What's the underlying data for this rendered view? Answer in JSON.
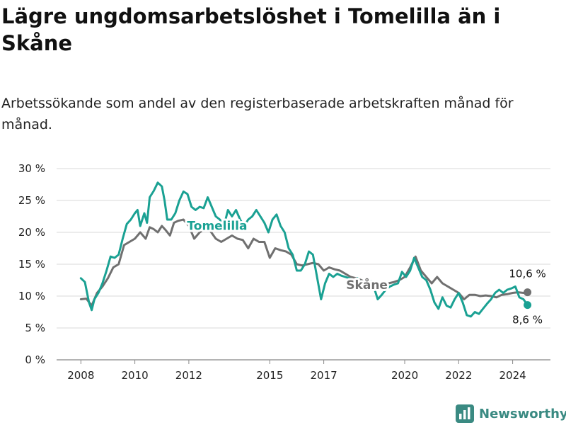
{
  "title": "Lägre ungdomsarbetslöshet i Tomelilla än i Skåne",
  "subtitle": "Arbetssökande som andel av den registerbaserade arbetskraften månad för månad.",
  "brand": {
    "name": "Newsworthy",
    "color": "#3a8a82"
  },
  "colors": {
    "tomelilla": "#1aa193",
    "skane": "#707070",
    "grid": "#d9d9d9",
    "axis": "#888888"
  },
  "chart_data": {
    "type": "line",
    "title": "Lägre ungdomsarbetslöshet i Tomelilla än i Skåne",
    "subtitle": "Arbetssökande som andel av den registerbaserade arbetskraften månad för månad.",
    "x_ticks": [
      {
        "value": 2008,
        "label": "2008"
      },
      {
        "value": 2010,
        "label": "2010"
      },
      {
        "value": 2012,
        "label": "2012"
      },
      {
        "value": 2015,
        "label": "2015"
      },
      {
        "value": 2017,
        "label": "2017"
      },
      {
        "value": 2020,
        "label": "2020"
      },
      {
        "value": 2022,
        "label": "2022"
      },
      {
        "value": 2024,
        "label": "2024"
      }
    ],
    "y_ticks": [
      {
        "value": 0,
        "label": "0 %"
      },
      {
        "value": 5,
        "label": "5 %"
      },
      {
        "value": 10,
        "label": "10 %"
      },
      {
        "value": 15,
        "label": "15 %"
      },
      {
        "value": 20,
        "label": "20 %"
      },
      {
        "value": 25,
        "label": "25 %"
      },
      {
        "value": 30,
        "label": "30 %"
      }
    ],
    "xlim": [
      2007.1,
      2025.4
    ],
    "ylim": [
      0,
      30
    ],
    "grid": true,
    "series": [
      {
        "name": "Tomelilla",
        "color": "#1aa193",
        "end_label": "8,6 %",
        "x": [
          2008.0,
          2008.15,
          2008.3,
          2008.4,
          2008.5,
          2008.65,
          2008.8,
          2008.95,
          2009.1,
          2009.25,
          2009.4,
          2009.55,
          2009.7,
          2009.85,
          2010.0,
          2010.1,
          2010.2,
          2010.35,
          2010.45,
          2010.55,
          2010.7,
          2010.85,
          2011.0,
          2011.1,
          2011.2,
          2011.35,
          2011.5,
          2011.65,
          2011.8,
          2011.95,
          2012.1,
          2012.25,
          2012.4,
          2012.55,
          2012.7,
          2012.85,
          2013.0,
          2013.15,
          2013.3,
          2013.45,
          2013.6,
          2013.75,
          2013.9,
          2014.05,
          2014.2,
          2014.35,
          2014.5,
          2014.65,
          2014.8,
          2014.95,
          2015.1,
          2015.25,
          2015.4,
          2015.55,
          2015.7,
          2015.85,
          2016.0,
          2016.15,
          2016.3,
          2016.45,
          2016.6,
          2016.75,
          2016.9,
          2017.05,
          2017.2,
          2017.35,
          2017.5,
          2017.65,
          2017.8,
          2017.95,
          2018.1,
          2018.25,
          2018.4,
          2018.55,
          2018.7,
          2018.85,
          2019.0,
          2019.15,
          2019.3,
          2019.45,
          2019.6,
          2019.75,
          2019.9,
          2020.05,
          2020.2,
          2020.35,
          2020.5,
          2020.65,
          2020.8,
          2020.95,
          2021.1,
          2021.25,
          2021.4,
          2021.55,
          2021.7,
          2021.85,
          2022.0,
          2022.15,
          2022.3,
          2022.45,
          2022.6,
          2022.75,
          2022.9,
          2023.05,
          2023.2,
          2023.35,
          2023.5,
          2023.65,
          2023.8,
          2023.95,
          2024.1,
          2024.25,
          2024.4,
          2024.55
        ],
        "y": [
          12.8,
          12.2,
          9,
          7.8,
          9.5,
          10.5,
          12,
          14,
          16.2,
          16,
          16.5,
          19,
          21.3,
          22,
          23,
          23.5,
          21,
          23,
          21.5,
          25.5,
          26.5,
          27.8,
          27.2,
          25,
          22,
          22,
          23,
          25,
          26.4,
          26,
          24,
          23.5,
          24,
          23.8,
          25.5,
          24,
          22.5,
          22,
          21,
          23.5,
          22.5,
          23.5,
          22,
          21,
          22,
          22.5,
          23.5,
          22.5,
          21.5,
          20,
          22,
          22.8,
          21,
          20,
          17.5,
          16.5,
          14,
          14,
          15,
          17,
          16.5,
          13,
          9.5,
          12,
          13.5,
          13,
          13.5,
          13.2,
          13,
          12.8,
          12.5,
          12.8,
          12,
          12,
          12.5,
          11.5,
          9.5,
          10.2,
          11,
          11.5,
          11.8,
          12,
          13.8,
          13,
          14,
          16,
          14.5,
          13,
          12.5,
          11,
          9,
          8,
          9.8,
          8.5,
          8.2,
          9.5,
          10.5,
          9,
          7,
          6.8,
          7.5,
          7.2,
          8,
          8.8,
          9.5,
          10.5,
          11,
          10.5,
          11,
          11.2,
          11.5,
          9.8,
          9.5,
          8.6
        ]
      },
      {
        "name": "Skåne",
        "color": "#707070",
        "end_label": "10,6 %",
        "x": [
          2008.0,
          2008.2,
          2008.4,
          2008.6,
          2008.8,
          2009.0,
          2009.2,
          2009.4,
          2009.6,
          2009.8,
          2010.0,
          2010.2,
          2010.4,
          2010.55,
          2010.7,
          2010.85,
          2011.0,
          2011.15,
          2011.3,
          2011.45,
          2011.6,
          2011.8,
          2012.0,
          2012.2,
          2012.4,
          2012.6,
          2012.8,
          2013.0,
          2013.2,
          2013.4,
          2013.6,
          2013.8,
          2014.0,
          2014.2,
          2014.4,
          2014.6,
          2014.8,
          2015.0,
          2015.2,
          2015.4,
          2015.6,
          2015.8,
          2016.0,
          2016.2,
          2016.4,
          2016.6,
          2016.8,
          2017.0,
          2017.2,
          2017.4,
          2017.6,
          2017.8,
          2018.0,
          2018.2,
          2018.4,
          2018.6,
          2018.8,
          2019.0,
          2019.2,
          2019.4,
          2019.6,
          2019.8,
          2020.0,
          2020.2,
          2020.4,
          2020.6,
          2020.8,
          2021.0,
          2021.2,
          2021.4,
          2021.6,
          2021.8,
          2022.0,
          2022.2,
          2022.4,
          2022.6,
          2022.8,
          2023.0,
          2023.2,
          2023.4,
          2023.6,
          2023.8,
          2024.0,
          2024.2,
          2024.4,
          2024.55
        ],
        "y": [
          9.5,
          9.6,
          8.5,
          10.5,
          11.5,
          12.8,
          14.5,
          15,
          18,
          18.5,
          19,
          20,
          19,
          20.8,
          20.5,
          20,
          21,
          20.3,
          19.5,
          21.5,
          21.8,
          22,
          21,
          19,
          20,
          20.5,
          20.2,
          19,
          18.5,
          19,
          19.5,
          19,
          18.8,
          17.5,
          19,
          18.5,
          18.5,
          16,
          17.5,
          17.2,
          17,
          16.5,
          15,
          14.8,
          15,
          15.2,
          15,
          14,
          14.5,
          14.2,
          14,
          13.5,
          13,
          12.8,
          12.5,
          12,
          11.5,
          11.8,
          12,
          12,
          12.2,
          12.5,
          13,
          14.5,
          16.2,
          14,
          13,
          12,
          13,
          12,
          11.5,
          11,
          10.5,
          9.5,
          10.2,
          10.2,
          10,
          10.1,
          10,
          9.8,
          10.2,
          10.3,
          10.5,
          10.6,
          10.5,
          10.6
        ]
      }
    ],
    "series_labels": [
      "Tomelilla",
      "Skåne"
    ]
  }
}
